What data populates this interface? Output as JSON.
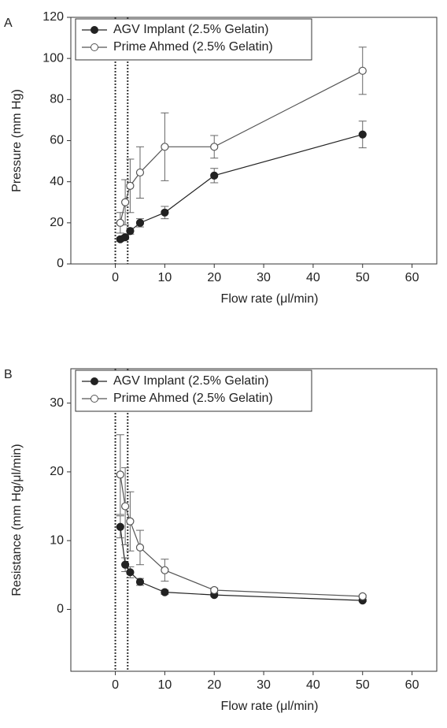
{
  "chart_data": [
    {
      "type": "line",
      "panel_label": "A",
      "xlabel": "Flow rate (μl/min)",
      "ylabel": "Pressure (mm Hg)",
      "x": [
        1,
        2,
        3,
        5,
        10,
        20,
        50
      ],
      "xlim": [
        -9,
        65
      ],
      "xticks": [
        0,
        10,
        20,
        30,
        40,
        50,
        60
      ],
      "ylim": [
        0,
        120
      ],
      "yticks": [
        0,
        20,
        40,
        60,
        80,
        100,
        120
      ],
      "legend": "upper left",
      "series": [
        {
          "name": "AGV Implant (2.5% Gelatin)",
          "color": "#222222",
          "marker": "filled",
          "values": [
            12,
            13,
            16,
            20,
            25,
            43,
            63
          ],
          "errors": [
            1,
            1,
            1.5,
            2,
            3,
            3.5,
            6.5
          ]
        },
        {
          "name": "Prime Ahmed (2.5% Gelatin)",
          "color": "#555555",
          "marker": "open",
          "values": [
            20,
            30,
            38,
            44.5,
            57,
            57,
            94
          ],
          "errors": [
            5,
            11,
            13,
            12.5,
            16.5,
            5.5,
            11.5
          ]
        }
      ]
    },
    {
      "type": "line",
      "panel_label": "B",
      "xlabel": "Flow rate (μl/min)",
      "ylabel": "Resistance (mm Hg/μl/min)",
      "x": [
        1,
        2,
        3,
        5,
        10,
        20,
        50
      ],
      "xlim": [
        -9,
        65
      ],
      "xticks": [
        0,
        10,
        20,
        30,
        40,
        50,
        60
      ],
      "ylim": [
        -9,
        35
      ],
      "yticks": [
        0,
        10,
        20,
        30
      ],
      "legend": "upper left",
      "series": [
        {
          "name": "AGV Implant (2.5% Gelatin)",
          "color": "#222222",
          "marker": "filled",
          "values": [
            12,
            6.5,
            5.4,
            4,
            2.5,
            2.1,
            1.3
          ],
          "errors": [
            1.6,
            1,
            0.8,
            0.5,
            0.3,
            0.2,
            0.15
          ]
        },
        {
          "name": "Prime Ahmed (2.5% Gelatin)",
          "color": "#555555",
          "marker": "open",
          "values": [
            19.6,
            15,
            12.8,
            9,
            5.7,
            2.8,
            1.9
          ],
          "errors": [
            5.8,
            5.6,
            4.3,
            2.5,
            1.6,
            0.3,
            0.2
          ]
        }
      ]
    }
  ]
}
